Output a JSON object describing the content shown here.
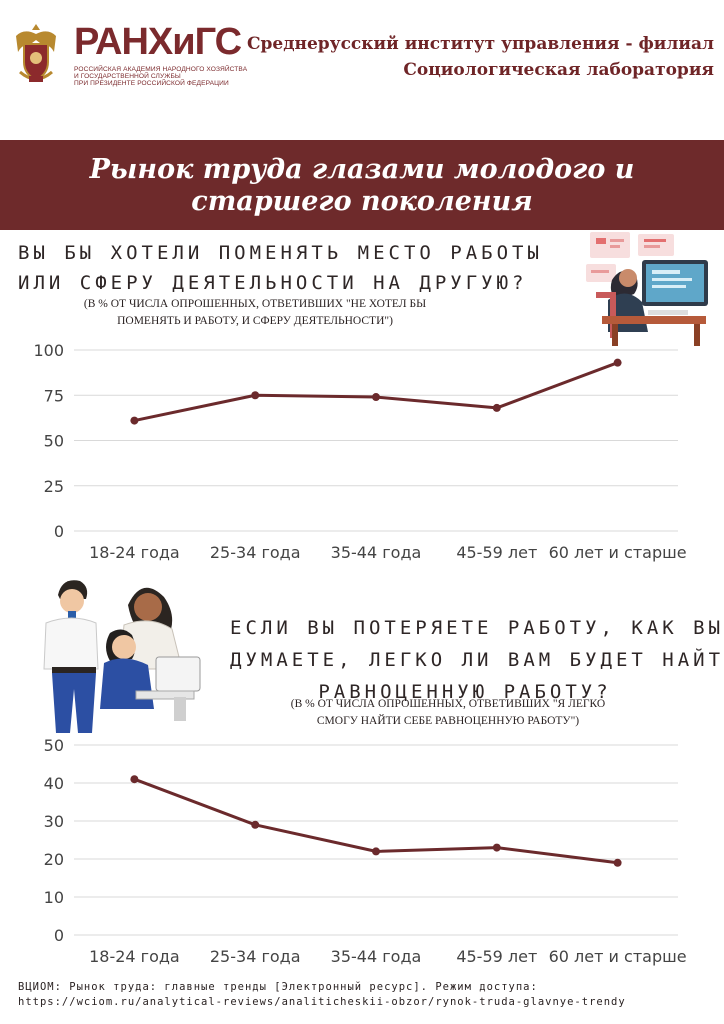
{
  "header": {
    "logo_name": "РАНХиГС",
    "logo_sub": [
      "РОССИЙСКАЯ АКАДЕМИЯ НАРОДНОГО ХОЗЯЙСТВА",
      "И ГОСУДАРСТВЕННОЙ СЛУЖБЫ",
      "ПРИ ПРЕЗИДЕНТЕ РОССИЙСКОЙ ФЕДЕРАЦИИ"
    ],
    "org_line1": "Среднерусский институт управления - филиал",
    "org_line2": "Социологическая лаборатория"
  },
  "banner": {
    "title_line1": "Рынок труда глазами молодого и",
    "title_line2": "старшего поколения"
  },
  "q1": {
    "title_line1": "ВЫ БЫ ХОТЕЛИ ПОМЕНЯТЬ МЕСТО РАБОТЫ",
    "title_line2": "ИЛИ СФЕРУ ДЕЯТЕЛЬНОСТИ НА ДРУГУЮ?",
    "note_line1": "(В % ОТ ЧИСЛА ОПРОШЕННЫХ, ОТВЕТИВШИХ \"НЕ ХОТЕЛ БЫ",
    "note_line2": "ПОМЕНЯТЬ И РАБОТУ, И СФЕРУ ДЕЯТЕЛЬНОСТИ\")"
  },
  "q2": {
    "title_line1": "ЕСЛИ ВЫ ПОТЕРЯЕТЕ РАБОТУ, КАК ВЫ",
    "title_line2": "ДУМАЕТЕ, ЛЕГКО ЛИ ВАМ БУДЕТ НАЙТИ",
    "title_line3": "РАВНОЦЕННУЮ РАБОТУ?",
    "note_line1": "(В % ОТ ЧИСЛА ОПРОШЕННЫХ, ОТВЕТИВШИХ \"Я ЛЕГКО",
    "note_line2": "СМОГУ НАЙТИ СЕБЕ РАВНОЦЕННУЮ РАБОТУ\")"
  },
  "colors": {
    "brand": "#7b2a2d",
    "banner": "#6e2a2b",
    "line": "#6b2a2c",
    "grid": "#d9d9d9",
    "axis_text": "#444444"
  },
  "chart_data": [
    {
      "type": "line",
      "categories": [
        "18-24 года",
        "25-34 года",
        "35-44 года",
        "45-59 лет",
        "60 лет и старше"
      ],
      "values": [
        61,
        75,
        74,
        68,
        93
      ],
      "yticks": [
        0,
        25,
        50,
        75,
        100
      ],
      "ylim": [
        0,
        100
      ],
      "grid": true
    },
    {
      "type": "line",
      "categories": [
        "18-24 года",
        "25-34 года",
        "35-44 года",
        "45-59 лет",
        "60 лет и старше"
      ],
      "values": [
        41,
        29,
        22,
        23,
        19
      ],
      "yticks": [
        0,
        10,
        20,
        30,
        40,
        50
      ],
      "ylim": [
        0,
        50
      ],
      "grid": true
    }
  ],
  "footer": {
    "source_line1": "ВЦИОМ: Рынок труда: главные тренды [Электронный ресурс]. Режим доступа:",
    "source_line2": "https://wciom.ru/analytical-reviews/analiticheskii-obzor/rynok-truda-glavnye-trendy"
  }
}
